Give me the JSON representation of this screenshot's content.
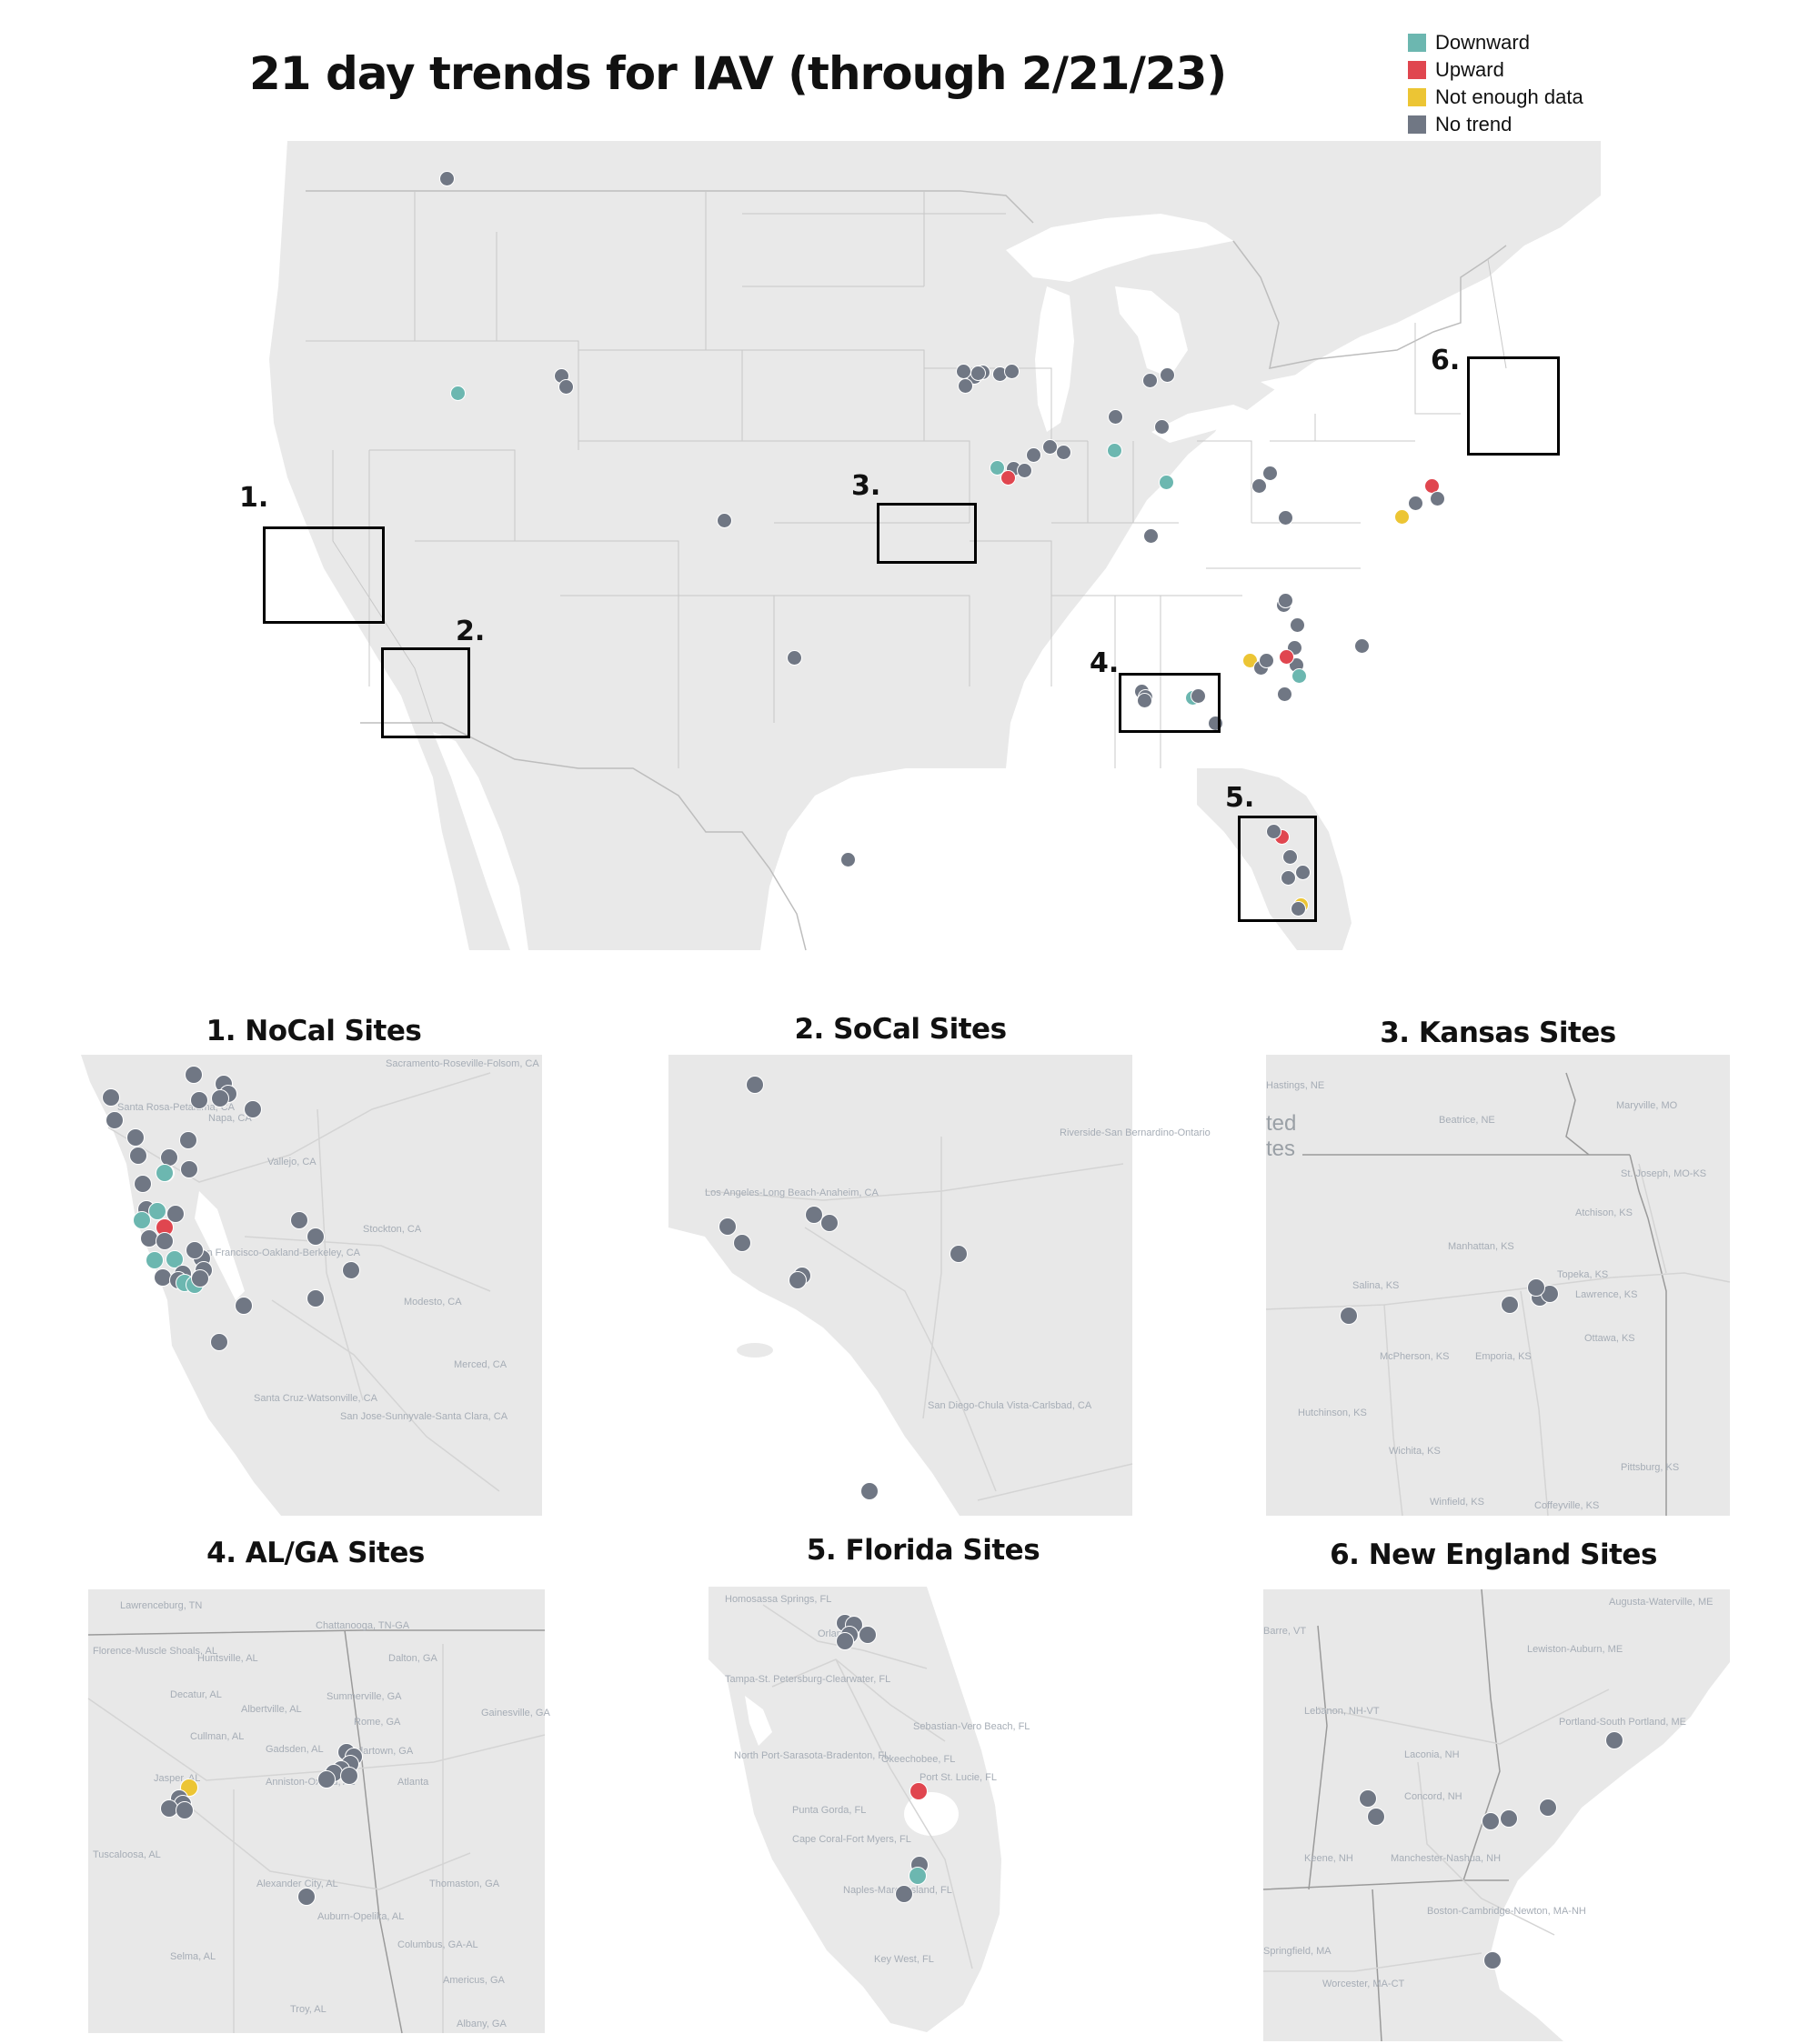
{
  "title": "21 day trends for IAV (through 2/21/23)",
  "colors": {
    "downward": "#6cb7b0",
    "upward": "#e0464f",
    "not_enough_data": "#ecc534",
    "no_trend": "#707784",
    "land": "#e9e9e9",
    "water": "#ffffff"
  },
  "legend": [
    {
      "label": "Downward",
      "color": "#6cb7b0"
    },
    {
      "label": "Upward",
      "color": "#e0464f"
    },
    {
      "label": "Not enough data",
      "color": "#ecc534"
    },
    {
      "label": "No trend",
      "color": "#707784"
    }
  ],
  "main_map": {
    "callouts": [
      "1.",
      "2.",
      "3.",
      "4.",
      "5.",
      "6."
    ],
    "sites": [
      {
        "state": "no_trend"
      },
      {
        "state": "downward"
      },
      {
        "state": "no_trend"
      },
      {
        "state": "no_trend"
      },
      {
        "state": "no_trend"
      },
      {
        "state": "no_trend"
      },
      {
        "state": "no_trend"
      },
      {
        "state": "no_trend"
      },
      {
        "state": "no_trend"
      },
      {
        "state": "no_trend"
      },
      {
        "state": "no_trend"
      },
      {
        "state": "no_trend"
      },
      {
        "state": "downward"
      },
      {
        "state": "no_trend"
      },
      {
        "state": "no_trend"
      },
      {
        "state": "no_trend"
      },
      {
        "state": "no_trend"
      },
      {
        "state": "no_trend"
      },
      {
        "state": "no_trend"
      },
      {
        "state": "no_trend"
      },
      {
        "state": "downward"
      },
      {
        "state": "no_trend"
      },
      {
        "state": "upward"
      },
      {
        "state": "no_trend"
      },
      {
        "state": "no_trend"
      },
      {
        "state": "no_trend"
      },
      {
        "state": "no_trend"
      },
      {
        "state": "downward"
      },
      {
        "state": "no_trend"
      },
      {
        "state": "no_trend"
      },
      {
        "state": "no_trend"
      },
      {
        "state": "no_trend"
      },
      {
        "state": "not_enough_data"
      },
      {
        "state": "no_trend"
      },
      {
        "state": "no_trend"
      },
      {
        "state": "no_trend"
      },
      {
        "state": "upward"
      },
      {
        "state": "no_trend"
      },
      {
        "state": "not_enough_data"
      },
      {
        "state": "no_trend"
      },
      {
        "state": "no_trend"
      },
      {
        "state": "no_trend"
      },
      {
        "state": "no_trend"
      },
      {
        "state": "downward"
      },
      {
        "state": "no_trend"
      },
      {
        "state": "no_trend"
      },
      {
        "state": "upward"
      },
      {
        "state": "no_trend"
      },
      {
        "state": "no_trend"
      },
      {
        "state": "not_enough_data"
      },
      {
        "state": "no_trend"
      },
      {
        "state": "no_trend"
      },
      {
        "state": "no_trend"
      },
      {
        "state": "no_trend"
      },
      {
        "state": "no_trend"
      },
      {
        "state": "no_trend"
      },
      {
        "state": "no_trend"
      },
      {
        "state": "no_trend"
      },
      {
        "state": "downward"
      },
      {
        "state": "upward"
      }
    ]
  },
  "insets": [
    {
      "title": "1. NoCal Sites",
      "places": [
        "Sacramento-Roseville-Folsom, CA",
        "Santa Rosa-Petaluma, CA",
        "Napa, CA",
        "Vallejo, CA",
        "Stockton, CA",
        "San Francisco-Oakland-Berkeley, CA",
        "Modesto, CA",
        "Merced, CA",
        "Santa Cruz-Watsonville, CA",
        "San Jose-Sunnyvale-Santa Clara, CA"
      ],
      "sites": [
        {
          "state": "no_trend"
        },
        {
          "state": "no_trend"
        },
        {
          "state": "no_trend"
        },
        {
          "state": "no_trend"
        },
        {
          "state": "no_trend"
        },
        {
          "state": "no_trend"
        },
        {
          "state": "no_trend"
        },
        {
          "state": "no_trend"
        },
        {
          "state": "no_trend"
        },
        {
          "state": "downward"
        },
        {
          "state": "no_trend"
        },
        {
          "state": "no_trend"
        },
        {
          "state": "no_trend"
        },
        {
          "state": "no_trend"
        },
        {
          "state": "no_trend"
        },
        {
          "state": "downward"
        },
        {
          "state": "upward"
        },
        {
          "state": "no_trend"
        },
        {
          "state": "downward"
        },
        {
          "state": "downward"
        },
        {
          "state": "no_trend"
        },
        {
          "state": "no_trend"
        },
        {
          "state": "no_trend"
        },
        {
          "state": "downward"
        },
        {
          "state": "downward"
        },
        {
          "state": "no_trend"
        },
        {
          "state": "no_trend"
        },
        {
          "state": "no_trend"
        },
        {
          "state": "downward"
        },
        {
          "state": "downward"
        },
        {
          "state": "no_trend"
        },
        {
          "state": "no_trend"
        },
        {
          "state": "no_trend"
        },
        {
          "state": "no_trend"
        },
        {
          "state": "no_trend"
        },
        {
          "state": "no_trend"
        },
        {
          "state": "no_trend"
        },
        {
          "state": "no_trend"
        },
        {
          "state": "no_trend"
        },
        {
          "state": "no_trend"
        }
      ]
    },
    {
      "title": "2. SoCal Sites",
      "places": [
        "Riverside-San Bernardino-Ontario",
        "Los Angeles-Long Beach-Anaheim, CA",
        "San Diego-Chula Vista-Carlsbad, CA"
      ],
      "sites": [
        {
          "state": "no_trend"
        },
        {
          "state": "no_trend"
        },
        {
          "state": "no_trend"
        },
        {
          "state": "no_trend"
        },
        {
          "state": "no_trend"
        },
        {
          "state": "no_trend"
        },
        {
          "state": "no_trend"
        },
        {
          "state": "no_trend"
        },
        {
          "state": "no_trend"
        }
      ]
    },
    {
      "title": "3. Kansas Sites",
      "places": [
        "Hastings, NE",
        "Beatrice, NE",
        "Maryville, MO",
        "St. Joseph, MO-KS",
        "Atchison, KS",
        "Manhattan, KS",
        "Topeka, KS",
        "Lawrence, KS",
        "Salina, KS",
        "McPherson, KS",
        "Emporia, KS",
        "Ottawa, KS",
        "Hutchinson, KS",
        "Wichita, KS",
        "Winfield, KS",
        "Coffeyville, KS",
        "Pittsburg, KS"
      ],
      "sites": [
        {
          "state": "no_trend"
        },
        {
          "state": "no_trend"
        },
        {
          "state": "no_trend"
        },
        {
          "state": "no_trend"
        },
        {
          "state": "no_trend"
        }
      ]
    },
    {
      "title": "4. AL/GA Sites",
      "places": [
        "Lawrenceburg, TN",
        "Chattanooga, TN-GA",
        "Florence-Muscle Shoals, AL",
        "Huntsville, AL",
        "Dalton, GA",
        "Decatur, AL",
        "Albertville, AL",
        "Summerville, GA",
        "Rome, GA",
        "Gainesville, GA",
        "Cullman, AL",
        "Gadsden, AL",
        "Cedartown, GA",
        "Jasper, AL",
        "Anniston-Oxford, AL",
        "Atlanta",
        "Tuscaloosa, AL",
        "Alexander City, AL",
        "Thomaston, GA",
        "Auburn-Opelika, AL",
        "Selma, AL",
        "Columbus, GA-AL",
        "Americus, GA",
        "Troy, AL",
        "Albany, GA"
      ],
      "sites": [
        {
          "state": "not_enough_data"
        },
        {
          "state": "no_trend"
        },
        {
          "state": "no_trend"
        },
        {
          "state": "no_trend"
        },
        {
          "state": "no_trend"
        },
        {
          "state": "no_trend"
        },
        {
          "state": "no_trend"
        },
        {
          "state": "no_trend"
        },
        {
          "state": "no_trend"
        },
        {
          "state": "no_trend"
        },
        {
          "state": "no_trend"
        },
        {
          "state": "no_trend"
        },
        {
          "state": "no_trend"
        }
      ]
    },
    {
      "title": "5. Florida Sites",
      "places": [
        "Homosassa Springs, FL",
        "Orlando",
        "Tampa-St. Petersburg-Clearwater, FL",
        "Sebastian-Vero Beach, FL",
        "North Port-Sarasota-Bradenton, FL",
        "Okeechobee, FL",
        "Port St. Lucie, FL",
        "Punta Gorda, FL",
        "Cape Coral-Fort Myers, FL",
        "Naples-Marco Island, FL",
        "Key West, FL"
      ],
      "sites": [
        {
          "state": "no_trend"
        },
        {
          "state": "no_trend"
        },
        {
          "state": "no_trend"
        },
        {
          "state": "no_trend"
        },
        {
          "state": "no_trend"
        },
        {
          "state": "upward"
        },
        {
          "state": "no_trend"
        },
        {
          "state": "downward"
        },
        {
          "state": "no_trend"
        }
      ]
    },
    {
      "title": "6. New England Sites",
      "places": [
        "Augusta-Waterville, ME",
        "Barre, VT",
        "Lewiston-Auburn, ME",
        "Lebanon, NH-VT",
        "Portland-South Portland, ME",
        "Laconia, NH",
        "Concord, NH",
        "Keene, NH",
        "Manchester-Nashua, NH",
        "Boston-Cambridge-Newton, MA-NH",
        "Springfield, MA",
        "Worcester, MA-CT"
      ],
      "sites": [
        {
          "state": "no_trend"
        },
        {
          "state": "no_trend"
        },
        {
          "state": "no_trend"
        },
        {
          "state": "no_trend"
        },
        {
          "state": "no_trend"
        },
        {
          "state": "no_trend"
        },
        {
          "state": "no_trend"
        }
      ]
    }
  ]
}
